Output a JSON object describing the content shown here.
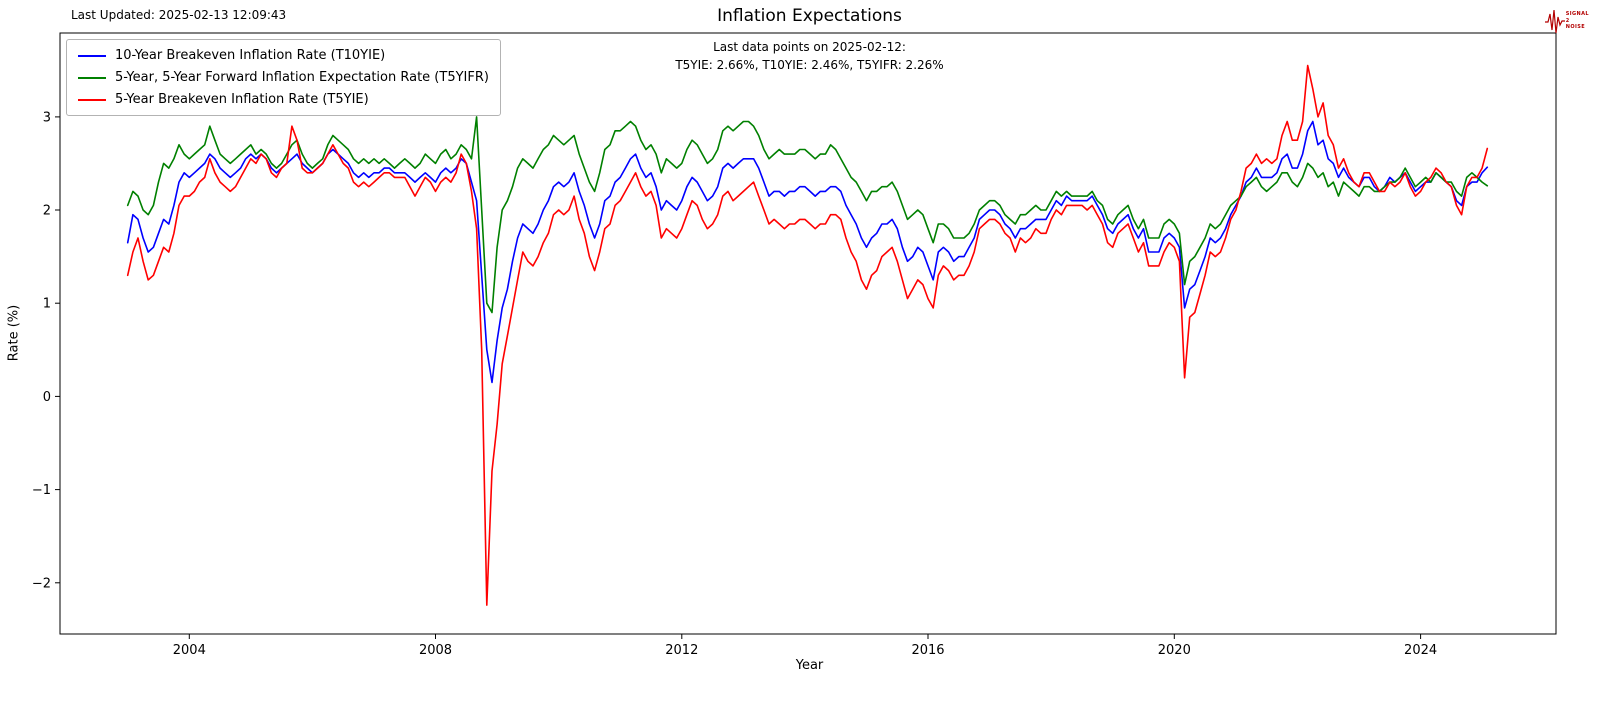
{
  "header": {
    "last_updated": "Last Updated: 2025-02-13 12:09:43",
    "title": "Inflation Expectations",
    "annotation_line1": "Last data points on 2025-02-12:",
    "annotation_line2": "T5YIE: 2.66%, T10YIE: 2.46%, T5YIFR: 2.26%"
  },
  "logo": {
    "line1": "SIGNAL",
    "line2": "2",
    "line3": "NOISE",
    "color": "#b30000"
  },
  "chart_data": {
    "type": "line",
    "title": "Inflation Expectations",
    "xlabel": "Year",
    "ylabel": "Rate (%)",
    "xlim": [
      2001.9,
      2026.2
    ],
    "ylim": [
      -2.55,
      3.9
    ],
    "x_ticks": [
      2004,
      2008,
      2012,
      2016,
      2020,
      2024
    ],
    "y_ticks": [
      -2,
      -1,
      0,
      1,
      2,
      3
    ],
    "grid": false,
    "legend_position": "upper-left",
    "x_start_year": 2003.0,
    "x_step_years": 0.0833333,
    "series": [
      {
        "name": "10-Year Breakeven Inflation Rate (T10YIE)",
        "color": "#0000ff",
        "last_value": 2.46,
        "values": [
          1.65,
          1.95,
          1.9,
          1.7,
          1.55,
          1.6,
          1.75,
          1.9,
          1.85,
          2.05,
          2.3,
          2.4,
          2.35,
          2.4,
          2.45,
          2.5,
          2.6,
          2.55,
          2.45,
          2.4,
          2.35,
          2.4,
          2.45,
          2.55,
          2.6,
          2.55,
          2.6,
          2.55,
          2.45,
          2.4,
          2.45,
          2.5,
          2.55,
          2.6,
          2.5,
          2.45,
          2.4,
          2.45,
          2.5,
          2.6,
          2.65,
          2.6,
          2.55,
          2.5,
          2.4,
          2.35,
          2.4,
          2.35,
          2.4,
          2.4,
          2.45,
          2.45,
          2.4,
          2.4,
          2.4,
          2.35,
          2.3,
          2.35,
          2.4,
          2.35,
          2.3,
          2.4,
          2.45,
          2.4,
          2.45,
          2.55,
          2.5,
          2.3,
          2.1,
          1.3,
          0.5,
          0.15,
          0.6,
          0.95,
          1.15,
          1.45,
          1.7,
          1.85,
          1.8,
          1.75,
          1.85,
          2.0,
          2.1,
          2.25,
          2.3,
          2.25,
          2.3,
          2.4,
          2.2,
          2.05,
          1.85,
          1.7,
          1.85,
          2.1,
          2.15,
          2.3,
          2.35,
          2.45,
          2.55,
          2.6,
          2.45,
          2.35,
          2.4,
          2.25,
          2.0,
          2.1,
          2.05,
          2.0,
          2.1,
          2.25,
          2.35,
          2.3,
          2.2,
          2.1,
          2.15,
          2.25,
          2.45,
          2.5,
          2.45,
          2.5,
          2.55,
          2.55,
          2.55,
          2.45,
          2.3,
          2.15,
          2.2,
          2.2,
          2.15,
          2.2,
          2.2,
          2.25,
          2.25,
          2.2,
          2.15,
          2.2,
          2.2,
          2.25,
          2.25,
          2.2,
          2.05,
          1.95,
          1.85,
          1.7,
          1.6,
          1.7,
          1.75,
          1.85,
          1.85,
          1.9,
          1.8,
          1.6,
          1.45,
          1.5,
          1.6,
          1.55,
          1.4,
          1.25,
          1.55,
          1.6,
          1.55,
          1.45,
          1.5,
          1.5,
          1.6,
          1.7,
          1.9,
          1.95,
          2.0,
          2.0,
          1.95,
          1.85,
          1.8,
          1.7,
          1.8,
          1.8,
          1.85,
          1.9,
          1.9,
          1.9,
          2.0,
          2.1,
          2.05,
          2.15,
          2.1,
          2.1,
          2.1,
          2.1,
          2.15,
          2.05,
          1.95,
          1.8,
          1.75,
          1.85,
          1.9,
          1.95,
          1.8,
          1.7,
          1.8,
          1.55,
          1.55,
          1.55,
          1.7,
          1.75,
          1.7,
          1.6,
          0.95,
          1.15,
          1.2,
          1.35,
          1.5,
          1.7,
          1.65,
          1.7,
          1.8,
          1.95,
          2.05,
          2.15,
          2.3,
          2.35,
          2.45,
          2.35,
          2.35,
          2.35,
          2.4,
          2.55,
          2.6,
          2.45,
          2.45,
          2.6,
          2.85,
          2.95,
          2.7,
          2.75,
          2.55,
          2.5,
          2.35,
          2.45,
          2.35,
          2.3,
          2.25,
          2.35,
          2.35,
          2.25,
          2.2,
          2.25,
          2.35,
          2.3,
          2.35,
          2.4,
          2.3,
          2.2,
          2.25,
          2.3,
          2.3,
          2.4,
          2.35,
          2.3,
          2.25,
          2.1,
          2.05,
          2.25,
          2.3,
          2.3,
          2.4,
          2.46
        ]
      },
      {
        "name": "5-Year, 5-Year Forward Inflation Expectation Rate (T5YIFR)",
        "color": "#008000",
        "last_value": 2.26,
        "values": [
          2.05,
          2.2,
          2.15,
          2.0,
          1.95,
          2.05,
          2.3,
          2.5,
          2.45,
          2.55,
          2.7,
          2.6,
          2.55,
          2.6,
          2.65,
          2.7,
          2.9,
          2.75,
          2.6,
          2.55,
          2.5,
          2.55,
          2.6,
          2.65,
          2.7,
          2.6,
          2.65,
          2.6,
          2.5,
          2.45,
          2.5,
          2.6,
          2.7,
          2.75,
          2.6,
          2.5,
          2.45,
          2.5,
          2.55,
          2.7,
          2.8,
          2.75,
          2.7,
          2.65,
          2.55,
          2.5,
          2.55,
          2.5,
          2.55,
          2.5,
          2.55,
          2.5,
          2.45,
          2.5,
          2.55,
          2.5,
          2.45,
          2.5,
          2.6,
          2.55,
          2.5,
          2.6,
          2.65,
          2.55,
          2.6,
          2.7,
          2.65,
          2.55,
          3.0,
          2.0,
          1.0,
          0.9,
          1.6,
          2.0,
          2.1,
          2.25,
          2.45,
          2.55,
          2.5,
          2.45,
          2.55,
          2.65,
          2.7,
          2.8,
          2.75,
          2.7,
          2.75,
          2.8,
          2.6,
          2.45,
          2.3,
          2.2,
          2.4,
          2.65,
          2.7,
          2.85,
          2.85,
          2.9,
          2.95,
          2.9,
          2.75,
          2.65,
          2.7,
          2.6,
          2.4,
          2.55,
          2.5,
          2.45,
          2.5,
          2.65,
          2.75,
          2.7,
          2.6,
          2.5,
          2.55,
          2.65,
          2.85,
          2.9,
          2.85,
          2.9,
          2.95,
          2.95,
          2.9,
          2.8,
          2.65,
          2.55,
          2.6,
          2.65,
          2.6,
          2.6,
          2.6,
          2.65,
          2.65,
          2.6,
          2.55,
          2.6,
          2.6,
          2.7,
          2.65,
          2.55,
          2.45,
          2.35,
          2.3,
          2.2,
          2.1,
          2.2,
          2.2,
          2.25,
          2.25,
          2.3,
          2.2,
          2.05,
          1.9,
          1.95,
          2.0,
          1.95,
          1.8,
          1.65,
          1.85,
          1.85,
          1.8,
          1.7,
          1.7,
          1.7,
          1.75,
          1.85,
          2.0,
          2.05,
          2.1,
          2.1,
          2.05,
          1.95,
          1.9,
          1.85,
          1.95,
          1.95,
          2.0,
          2.05,
          2.0,
          2.0,
          2.1,
          2.2,
          2.15,
          2.2,
          2.15,
          2.15,
          2.15,
          2.15,
          2.2,
          2.1,
          2.05,
          1.9,
          1.85,
          1.95,
          2.0,
          2.05,
          1.9,
          1.8,
          1.9,
          1.7,
          1.7,
          1.7,
          1.85,
          1.9,
          1.85,
          1.75,
          1.2,
          1.45,
          1.5,
          1.6,
          1.7,
          1.85,
          1.8,
          1.85,
          1.95,
          2.05,
          2.1,
          2.15,
          2.25,
          2.3,
          2.35,
          2.25,
          2.2,
          2.25,
          2.3,
          2.4,
          2.4,
          2.3,
          2.25,
          2.35,
          2.5,
          2.45,
          2.35,
          2.4,
          2.25,
          2.3,
          2.15,
          2.3,
          2.25,
          2.2,
          2.15,
          2.25,
          2.25,
          2.2,
          2.2,
          2.25,
          2.3,
          2.3,
          2.35,
          2.45,
          2.35,
          2.25,
          2.3,
          2.35,
          2.3,
          2.4,
          2.35,
          2.3,
          2.3,
          2.2,
          2.15,
          2.35,
          2.4,
          2.35,
          2.3,
          2.26
        ]
      },
      {
        "name": "5-Year Breakeven Inflation Rate (T5YIE)",
        "color": "#ff0000",
        "last_value": 2.66,
        "values": [
          1.3,
          1.55,
          1.7,
          1.45,
          1.25,
          1.3,
          1.45,
          1.6,
          1.55,
          1.75,
          2.05,
          2.15,
          2.15,
          2.2,
          2.3,
          2.35,
          2.55,
          2.4,
          2.3,
          2.25,
          2.2,
          2.25,
          2.35,
          2.45,
          2.55,
          2.5,
          2.6,
          2.55,
          2.4,
          2.35,
          2.45,
          2.5,
          2.9,
          2.75,
          2.45,
          2.4,
          2.4,
          2.45,
          2.5,
          2.6,
          2.7,
          2.6,
          2.5,
          2.45,
          2.3,
          2.25,
          2.3,
          2.25,
          2.3,
          2.35,
          2.4,
          2.4,
          2.35,
          2.35,
          2.35,
          2.25,
          2.15,
          2.25,
          2.35,
          2.3,
          2.2,
          2.3,
          2.35,
          2.3,
          2.4,
          2.6,
          2.5,
          2.2,
          1.8,
          0.5,
          -2.24,
          -0.8,
          -0.3,
          0.35,
          0.65,
          0.95,
          1.25,
          1.55,
          1.45,
          1.4,
          1.5,
          1.65,
          1.75,
          1.95,
          2.0,
          1.95,
          2.0,
          2.15,
          1.9,
          1.75,
          1.5,
          1.35,
          1.55,
          1.8,
          1.85,
          2.05,
          2.1,
          2.2,
          2.3,
          2.4,
          2.25,
          2.15,
          2.2,
          2.05,
          1.7,
          1.8,
          1.75,
          1.7,
          1.8,
          1.95,
          2.1,
          2.05,
          1.9,
          1.8,
          1.85,
          1.95,
          2.15,
          2.2,
          2.1,
          2.15,
          2.2,
          2.25,
          2.3,
          2.15,
          2.0,
          1.85,
          1.9,
          1.85,
          1.8,
          1.85,
          1.85,
          1.9,
          1.9,
          1.85,
          1.8,
          1.85,
          1.85,
          1.95,
          1.95,
          1.9,
          1.7,
          1.55,
          1.45,
          1.25,
          1.15,
          1.3,
          1.35,
          1.5,
          1.55,
          1.6,
          1.45,
          1.25,
          1.05,
          1.15,
          1.25,
          1.2,
          1.05,
          0.95,
          1.3,
          1.4,
          1.35,
          1.25,
          1.3,
          1.3,
          1.4,
          1.55,
          1.8,
          1.85,
          1.9,
          1.9,
          1.85,
          1.75,
          1.7,
          1.55,
          1.7,
          1.65,
          1.7,
          1.8,
          1.75,
          1.75,
          1.9,
          2.0,
          1.95,
          2.05,
          2.05,
          2.05,
          2.05,
          2.0,
          2.05,
          1.95,
          1.85,
          1.65,
          1.6,
          1.75,
          1.8,
          1.85,
          1.7,
          1.55,
          1.65,
          1.4,
          1.4,
          1.4,
          1.55,
          1.65,
          1.6,
          1.45,
          0.2,
          0.85,
          0.9,
          1.1,
          1.3,
          1.55,
          1.5,
          1.55,
          1.7,
          1.9,
          2.0,
          2.2,
          2.45,
          2.5,
          2.6,
          2.5,
          2.55,
          2.5,
          2.55,
          2.8,
          2.95,
          2.75,
          2.75,
          2.95,
          3.55,
          3.3,
          3.0,
          3.15,
          2.8,
          2.7,
          2.45,
          2.55,
          2.4,
          2.3,
          2.25,
          2.4,
          2.4,
          2.3,
          2.2,
          2.2,
          2.3,
          2.25,
          2.3,
          2.4,
          2.25,
          2.15,
          2.2,
          2.3,
          2.35,
          2.45,
          2.4,
          2.3,
          2.25,
          2.05,
          1.95,
          2.25,
          2.35,
          2.35,
          2.45,
          2.66
        ]
      }
    ]
  }
}
